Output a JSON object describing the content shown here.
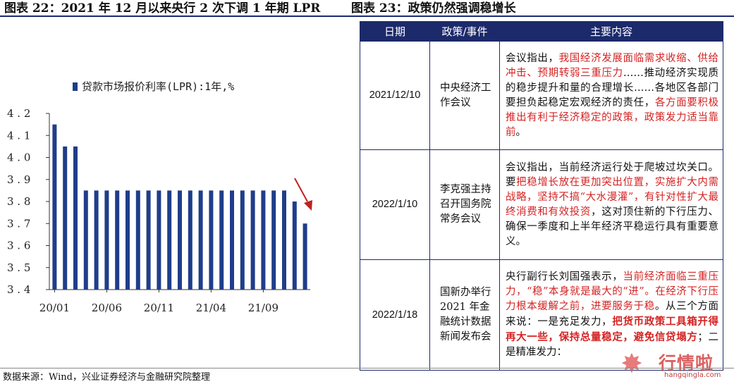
{
  "titles": {
    "left": "图表 22：2021 年 12 月以来央行 2 次下调 1 年期 LPR",
    "right": "图表 23：政策仍然强调稳增长"
  },
  "colors": {
    "bar": "#1f3d8a",
    "header_bg": "#1c2a6b",
    "highlight": "#d42323",
    "arrow": "#c0211d"
  },
  "chart_data": {
    "type": "bar",
    "legend": "贷款市场报价利率(LPR):1年,%",
    "legend_position": "top-left",
    "ylim": [
      3.4,
      4.2
    ],
    "yticks": [
      "3.4",
      "3.5",
      "3.6",
      "3.7",
      "3.8",
      "3.9",
      "4.0",
      "4.1",
      "4.2"
    ],
    "xtick_labels": [
      "20/01",
      "20/06",
      "20/11",
      "21/04",
      "21/09"
    ],
    "xtick_index": [
      0,
      5,
      10,
      15,
      20
    ],
    "categories": [
      "20/01",
      "20/02",
      "20/03",
      "20/04",
      "20/05",
      "20/06",
      "20/07",
      "20/08",
      "20/09",
      "20/10",
      "20/11",
      "20/12",
      "21/01",
      "21/02",
      "21/03",
      "21/04",
      "21/05",
      "21/06",
      "21/07",
      "21/08",
      "21/09",
      "21/10",
      "21/11",
      "21/12",
      "22/01"
    ],
    "values": [
      4.15,
      4.05,
      4.05,
      3.85,
      3.85,
      3.85,
      3.85,
      3.85,
      3.85,
      3.85,
      3.85,
      3.85,
      3.85,
      3.85,
      3.85,
      3.85,
      3.85,
      3.85,
      3.85,
      3.85,
      3.85,
      3.85,
      3.85,
      3.8,
      3.7
    ],
    "grid": false,
    "annotation": "down-arrow"
  },
  "table": {
    "headers": [
      "日期",
      "政策/事件",
      "主要内容"
    ],
    "rows": [
      {
        "date": "2021/12/10",
        "event": "中央经济工作会议",
        "content": [
          {
            "t": "会议指出，",
            "s": ""
          },
          {
            "t": "我国经济发展面临需求收缩、供给冲击、预期转弱三重压力",
            "s": "red"
          },
          {
            "t": "……推动经济实现质的稳步提升和量的合理增长……各地区各部门要担负起稳定宏观经济的责任，",
            "s": ""
          },
          {
            "t": "各方面要积极推出有利于经济稳定的政策，政策发力适当靠前",
            "s": "red"
          },
          {
            "t": "。",
            "s": ""
          }
        ]
      },
      {
        "date": "2022/1/10",
        "event": "李克强主持召开国务院常务会议",
        "content": [
          {
            "t": "会议指出，当前经济运行处于爬坡过坎关口。要",
            "s": ""
          },
          {
            "t": "把稳增长放在更加突出位置，实施扩大内需战略，坚持不搞“大水漫灌”，有针对性扩大最终消费和有效投资",
            "s": "red"
          },
          {
            "t": "，这对顶住新的下行压力、确保一季度和上半年经济平稳运行具有重要意义。",
            "s": ""
          }
        ]
      },
      {
        "date": "2022/1/18",
        "event": "国新办举行 2021 年金融统计数据新闻发布会",
        "content": [
          {
            "t": "央行副行长刘国强表示，",
            "s": ""
          },
          {
            "t": "当前经济面临三重压力，“稳”本身就是最大的“进”。在经济下行压力根本缓解之前，进要服务于稳",
            "s": "red"
          },
          {
            "t": "。从三个方面来说：一是充足发力，",
            "s": ""
          },
          {
            "t": "把货币政策工具箱开得再大一些，保持总量稳定，避免信贷塌方",
            "s": "redb"
          },
          {
            "t": "；二是精准发力：",
            "s": ""
          }
        ]
      }
    ]
  },
  "source": "数据来源：Wind，兴业证券经济与金融研究院整理",
  "watermark": {
    "brand": "行情啦",
    "url": "hangqingla.com"
  }
}
